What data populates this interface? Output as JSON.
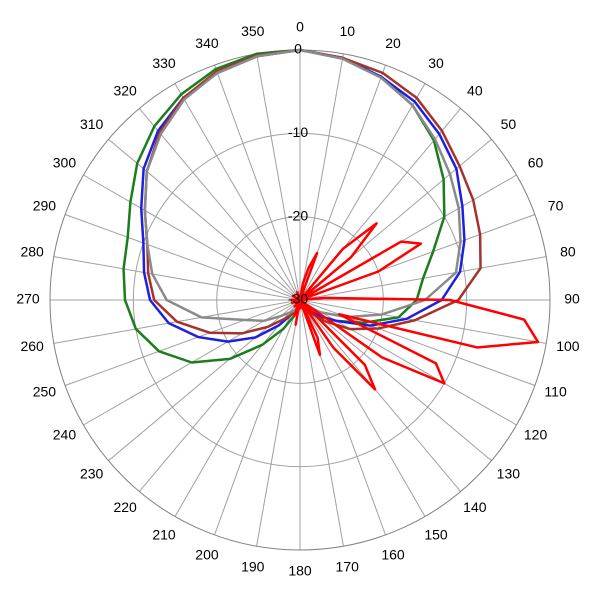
{
  "chart_data": {
    "type": "polar",
    "direction": "clockwise",
    "zero": "top",
    "rlim": [
      -30,
      0
    ],
    "rticks": [
      -30,
      -20,
      -10,
      0
    ],
    "thetaticks": [
      0,
      10,
      20,
      30,
      40,
      50,
      60,
      70,
      80,
      90,
      100,
      110,
      120,
      130,
      140,
      150,
      160,
      170,
      180,
      190,
      200,
      210,
      220,
      230,
      240,
      250,
      260,
      270,
      280,
      290,
      300,
      310,
      320,
      330,
      340,
      350
    ],
    "grid": true,
    "series": [
      {
        "color": "#1b7d1b",
        "theta": [
          0,
          10,
          20,
          30,
          40,
          50,
          60,
          70,
          80,
          90,
          100,
          110,
          120,
          130,
          140,
          150,
          160,
          170,
          180,
          190,
          200,
          210,
          220,
          230,
          240,
          250,
          260,
          270,
          280,
          290,
          300,
          310,
          320,
          330,
          340,
          350
        ],
        "values": [
          0,
          -0.5,
          -1.5,
          -3,
          -5,
          -7.5,
          -10,
          -13,
          -15,
          -16,
          -18,
          -22,
          -25,
          -27,
          -28,
          -29,
          -29,
          -29.5,
          -29.5,
          -29,
          -28,
          -26,
          -23,
          -19,
          -15,
          -12,
          -10,
          -9,
          -8.5,
          -8,
          -6.5,
          -4.5,
          -2.8,
          -1.5,
          -0.5,
          0
        ]
      },
      {
        "color": "#1f1fe0",
        "theta": [
          0,
          10,
          20,
          30,
          40,
          50,
          60,
          70,
          80,
          90,
          100,
          110,
          120,
          130,
          140,
          150,
          160,
          170,
          180,
          190,
          200,
          210,
          220,
          230,
          240,
          250,
          260,
          270,
          280,
          290,
          300,
          310,
          320,
          330,
          340,
          350
        ],
        "values": [
          0,
          -0.5,
          -1.5,
          -2.5,
          -4,
          -5.5,
          -7.5,
          -9,
          -10.5,
          -13,
          -17,
          -21,
          -25,
          -27,
          -28.5,
          -29,
          -29.5,
          -29.5,
          -29.5,
          -29.5,
          -29,
          -28,
          -26,
          -23,
          -20,
          -17,
          -14,
          -12,
          -11,
          -10,
          -8,
          -5.5,
          -3.5,
          -2,
          -1,
          -0.3
        ]
      },
      {
        "color": "#a3332c",
        "theta": [
          0,
          10,
          20,
          30,
          40,
          50,
          60,
          70,
          80,
          90,
          100,
          110,
          120,
          130,
          140,
          150,
          160,
          170,
          180,
          190,
          200,
          210,
          220,
          230,
          240,
          250,
          260,
          270,
          280,
          290,
          300,
          310,
          320,
          330,
          340,
          350
        ],
        "values": [
          0,
          -0.5,
          -1,
          -2,
          -3.5,
          -5,
          -6,
          -7,
          -8,
          -11,
          -16,
          -20,
          -23,
          -26,
          -28,
          -29,
          -29.5,
          -29.5,
          -29.5,
          -29.5,
          -29,
          -28,
          -27,
          -25,
          -22,
          -18.5,
          -15,
          -12.5,
          -11.5,
          -10.5,
          -8.5,
          -6,
          -3.8,
          -2,
          -0.8,
          -0.2
        ]
      },
      {
        "color": "#8a8a8a",
        "theta": [
          0,
          10,
          20,
          30,
          40,
          50,
          60,
          70,
          80,
          90,
          100,
          110,
          120,
          130,
          140,
          150,
          160,
          170,
          180,
          190,
          200,
          210,
          220,
          230,
          240,
          250,
          260,
          270,
          280,
          290,
          300,
          310,
          320,
          330,
          340,
          350
        ],
        "values": [
          0,
          -0.6,
          -1.6,
          -3,
          -4.8,
          -6.5,
          -8,
          -9.5,
          -11,
          -15,
          -20,
          -24,
          -27,
          -28.5,
          -29,
          -29.5,
          -29.5,
          -29.5,
          -29.5,
          -29.5,
          -29,
          -28.5,
          -28,
          -27,
          -25,
          -23,
          -18,
          -14,
          -12,
          -10.5,
          -8.5,
          -6,
          -4,
          -2.2,
          -1,
          -0.3
        ]
      },
      {
        "color": "#ff0000",
        "theta": [
          0,
          5,
          10,
          15,
          20,
          25,
          30,
          35,
          40,
          45,
          50,
          55,
          60,
          65,
          70,
          75,
          80,
          85,
          90,
          95,
          100,
          105,
          110,
          115,
          120,
          125,
          130,
          135,
          140,
          145,
          150,
          155,
          160,
          165,
          170,
          175,
          180,
          185,
          190,
          195,
          200,
          205,
          210,
          215,
          220,
          225,
          230,
          235,
          240,
          245,
          250,
          255,
          260,
          265,
          270,
          275,
          280,
          285,
          290,
          295,
          300,
          305,
          310,
          315,
          320,
          325,
          330,
          335,
          340,
          345,
          350,
          355
        ],
        "values": [
          -30,
          -30,
          -28,
          -26,
          -24,
          -30,
          -30,
          -30,
          -22,
          -17,
          -22,
          -30,
          -16,
          -14,
          -20,
          -30,
          -30,
          -27,
          -12,
          -3,
          -1,
          -8,
          -25,
          -12,
          -10,
          -18,
          -30,
          -19,
          -16,
          -23,
          -30,
          -25,
          -23,
          -30,
          -30,
          -30,
          -29,
          -30,
          -27,
          -30,
          -28,
          -30,
          -30,
          -30,
          -29,
          -30,
          -30,
          -30,
          -30,
          -30,
          -29,
          -30,
          -30,
          -30,
          -29,
          -30,
          -30,
          -30,
          -30,
          -30,
          -29,
          -30,
          -30,
          -30,
          -30,
          -30,
          -30,
          -30,
          -29,
          -30,
          -30,
          -30
        ]
      }
    ]
  }
}
